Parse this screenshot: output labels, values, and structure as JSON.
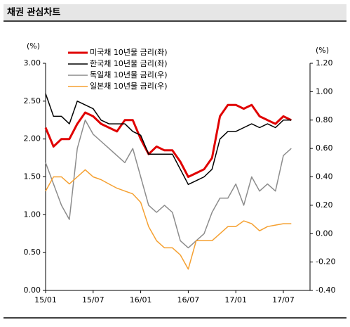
{
  "chart_data": {
    "type": "line",
    "title": "채권 관심차트",
    "y_label": "(%)",
    "y2_label": "(%)",
    "x": [
      "15/01",
      null,
      null,
      null,
      null,
      null,
      "15/07",
      null,
      null,
      null,
      null,
      null,
      "16/01",
      null,
      null,
      null,
      null,
      null,
      "16/07",
      null,
      null,
      null,
      null,
      null,
      "17/01",
      null,
      null,
      null,
      null,
      null,
      "17/07",
      null
    ],
    "ylim": [
      0,
      3
    ],
    "yticks": [
      {
        "value": 0,
        "label": "0.00"
      },
      {
        "value": 0.5,
        "label": "0.50"
      },
      {
        "value": 1,
        "label": "1.00"
      },
      {
        "value": 1.5,
        "label": "1.50"
      },
      {
        "value": 2,
        "label": "2.00"
      },
      {
        "value": 2.5,
        "label": "2.50"
      },
      {
        "value": 3,
        "label": "3.00"
      }
    ],
    "y2lim": [
      -0.4,
      1.2
    ],
    "y2ticks": [
      {
        "value": -0.4,
        "label": "-0.40"
      },
      {
        "value": -0.2,
        "label": "-0.20"
      },
      {
        "value": 0,
        "label": "0.00"
      },
      {
        "value": 0.2,
        "label": "0.20"
      },
      {
        "value": 0.4,
        "label": "0.40"
      },
      {
        "value": 0.6,
        "label": "0.60"
      },
      {
        "value": 0.8,
        "label": "0.80"
      },
      {
        "value": 1,
        "label": "1.00"
      },
      {
        "value": 1.2,
        "label": "1.20"
      }
    ],
    "series": [
      {
        "name": "미국채 10년물 금리(좌)",
        "color": "#e00000",
        "width": 3,
        "values": [
          2.15,
          1.9,
          2.0,
          2.0,
          2.2,
          2.35,
          2.3,
          2.2,
          2.15,
          2.1,
          2.25,
          2.25,
          2.0,
          1.8,
          1.9,
          1.85,
          1.85,
          1.7,
          1.5,
          1.55,
          1.6,
          1.75,
          2.3,
          2.45,
          2.45,
          2.4,
          2.45,
          2.3,
          2.25,
          2.2,
          2.3,
          2.25
        ]
      },
      {
        "name": "한국채 10년물 금리(좌)",
        "color": "#000000",
        "width": 1.5,
        "values": [
          2.6,
          2.3,
          2.3,
          2.2,
          2.5,
          2.45,
          2.4,
          2.25,
          2.2,
          2.2,
          2.2,
          2.1,
          2.05,
          1.8,
          1.8,
          1.8,
          1.8,
          1.6,
          1.4,
          1.45,
          1.5,
          1.6,
          2.0,
          2.1,
          2.1,
          2.15,
          2.2,
          2.15,
          2.2,
          2.15,
          2.25,
          2.25
        ]
      },
      {
        "name": "독일채 10년물 금리(우)",
        "color": "#8c8c8c",
        "width": 1.5,
        "axis": "y2",
        "values": [
          0.5,
          0.35,
          0.2,
          0.1,
          0.6,
          0.8,
          0.7,
          0.65,
          0.6,
          0.55,
          0.5,
          0.6,
          0.4,
          0.2,
          0.15,
          0.2,
          0.15,
          -0.05,
          -0.1,
          -0.05,
          0.0,
          0.15,
          0.25,
          0.25,
          0.35,
          0.2,
          0.4,
          0.3,
          0.35,
          0.3,
          0.55,
          0.6
        ]
      },
      {
        "name": "일본채 10년물 금리(우)",
        "color": "#f5a030",
        "width": 1.5,
        "axis": "y2",
        "values": [
          0.3,
          0.4,
          0.4,
          0.35,
          0.4,
          0.45,
          0.4,
          0.38,
          0.35,
          0.32,
          0.3,
          0.28,
          0.22,
          0.05,
          -0.05,
          -0.1,
          -0.1,
          -0.15,
          -0.25,
          -0.05,
          -0.05,
          -0.05,
          0.0,
          0.05,
          0.05,
          0.09,
          0.07,
          0.02,
          0.05,
          0.06,
          0.07,
          0.07
        ]
      }
    ]
  }
}
